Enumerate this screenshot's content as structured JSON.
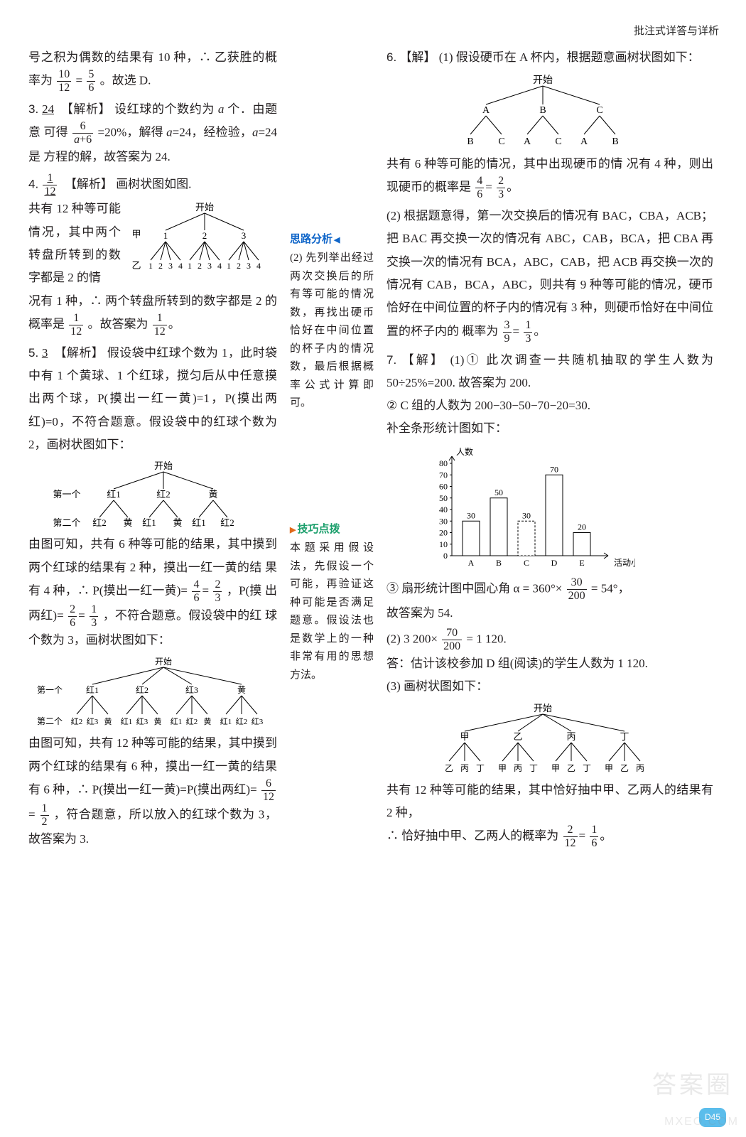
{
  "header": {
    "label": "批注式详答与详析"
  },
  "footer": {
    "page_tag": "D45",
    "watermark1": "答案圈",
    "watermark2": "MXEO.COM"
  },
  "sidenotes": {
    "s1_title": "思路分析",
    "s1_body": "(2) 先列举出经过两次交换后的所有等可能的情况数，再找出硬币恰好在中间位置的杯子内的情况数，最后根据概率公式计算即可。",
    "s2_title": "技巧点拨",
    "s2_body": "本题采用假设法，先假设一个可能，再验证这种可能是否满足题意。假设法也是数学上的一种非常有用的思想方法。"
  },
  "left": {
    "p0a": "号之积为偶数的结果有 10 种，∴ 乙获胜的概",
    "p0b": "率为",
    "p0c": "。故选 D.",
    "q3_num": "3.",
    "q3_ans": "24",
    "q3_tag": "【解析】",
    "q3_a": "设红球的个数约为 ",
    "q3_b": " 个．由题意",
    "q3_c": "可得",
    "q3_d": "=20%，解得 ",
    "q3_e": "=24，经检验，",
    "q3_f": "=24 是",
    "q3_g": "方程的解，故答案为 24.",
    "q4_num": "4.",
    "q4_tag": "【解析】",
    "q4_a": "画树状图如图.",
    "q4_b": "共有 12 种等可能情况，其中两个转盘所转到的数字都是 2 的情",
    "q4_c": "况有 1 种，∴ 两个转盘所转到的数字都是 2 的",
    "q4_d": "概率是",
    "q4_e": "。故答案为",
    "q5_num": "5.",
    "q5_ans": "3",
    "q5_tag": "【解析】",
    "q5_a": "假设袋中红球个数为 1，此时袋中有 1 个黄球、1 个红球，搅匀后从中任意摸出两个球，P(摸出一红一黄)=1，P(摸出两红)=0，不符合题意。假设袋中的红球个数为 2，画树状图如下：",
    "q5_b": "由图可知，共有 6 种等可能的结果，其中摸到两个红球的结果有 2 种，摸出一红一黄的结",
    "q5_c": "果有 4 种，∴ P(摸出一红一黄)=",
    "q5_d": "，P(摸",
    "q5_e": "出两红)=",
    "q5_f": "，不符合题意。假设袋中的红",
    "q5_g": "球个数为 3，画树状图如下：",
    "q5_h": "由图可知，共有 12 种等可能的结果，其中摸到两个红球的结果有 6 种，摸出一红一黄的结果有 6 种，∴ P(摸出一红一黄)=P(摸出两红)=",
    "q5_i": "，符合题意，所以放入的红球个数为 3，",
    "q5_j": "故答案为 3."
  },
  "right": {
    "q6_num": "6.",
    "q6_tag": "【解】",
    "q6_a": "(1) 假设硬币在 A 杯内，根据题意画树状图如下：",
    "q6_b": "共有 6 种等可能的情况，其中出现硬币的情",
    "q6_c": "况有 4 种，则出现硬币的概率是",
    "q6_d": "(2) 根据题意得，第一次交换后的情况有 BAC，CBA，ACB；把 BAC 再交换一次的情况有 ABC，CAB，BCA，把 CBA 再交换一次的情况有 BCA，ABC，CAB，把 ACB 再交换一次的情况有 CAB，BCA，ABC，则共有 9 种等可能的情况，硬币恰好在中间位置的杯子内的情况有 3 种，则硬币恰好在中间位置的杯子内的",
    "q6_e": "概率为",
    "q7_num": "7.",
    "q7_tag": "【解】",
    "q7_a": "(1)① 此次调查一共随机抽取的学生人数为 50÷25%=200. 故答案为 200.",
    "q7_b": "② C 组的人数为 200−30−50−70−20=30.",
    "q7_c": "补全条形统计图如下：",
    "q7_d": "③ 扇形统计图中圆心角 α = 360°×",
    "q7_d2": "= 54°，",
    "q7_e": "故答案为 54.",
    "q7_f": "(2) 3 200×",
    "q7_f2": "= 1 120.",
    "q7_g": "答：估计该校参加 D 组(阅读)的学生人数为 1 120.",
    "q7_h": "(3) 画树状图如下：",
    "q7_i": "共有 12 种等可能的结果，其中恰好抽中甲、乙两人的结果有 2 种，",
    "q7_j": "∴ 恰好抽中甲、乙两人的概率为"
  },
  "tree4": {
    "root": "开始",
    "row1_label": "甲",
    "row2_label": "乙",
    "level1": [
      "1",
      "2",
      "3"
    ],
    "level2": [
      "1",
      "2",
      "3",
      "4",
      "1",
      "2",
      "3",
      "4",
      "1",
      "2",
      "3",
      "4"
    ]
  },
  "tree5a": {
    "root": "开始",
    "r1label": "第一个",
    "r2label": "第二个",
    "level1": [
      "红1",
      "红2",
      "黄"
    ],
    "level2": [
      "红2",
      "黄",
      "红1",
      "黄",
      "红1",
      "红2"
    ]
  },
  "tree5b": {
    "root": "开始",
    "r1label": "第一个",
    "r2label": "第二个",
    "level1": [
      "红1",
      "红2",
      "红3",
      "黄"
    ],
    "level2": [
      "红2",
      "红3",
      "黄",
      "红1",
      "红3",
      "黄",
      "红1",
      "红2",
      "黄",
      "红1",
      "红2",
      "红3"
    ]
  },
  "tree6": {
    "root": "开始",
    "level1": [
      "A",
      "B",
      "C"
    ],
    "level2": [
      "B",
      "C",
      "A",
      "C",
      "A",
      "B"
    ]
  },
  "tree7": {
    "root": "开始",
    "level1": [
      "甲",
      "乙",
      "丙",
      "丁"
    ],
    "level2": [
      "乙",
      "丙",
      "丁",
      "甲",
      "丙",
      "丁",
      "甲",
      "乙",
      "丁",
      "甲",
      "乙",
      "丙"
    ]
  },
  "barchart": {
    "ylabel": "人数",
    "xlabel": "活动小组",
    "yticks": [
      0,
      10,
      20,
      30,
      40,
      50,
      60,
      70,
      80
    ],
    "categories": [
      "A",
      "B",
      "C",
      "D",
      "E"
    ],
    "values": [
      30,
      50,
      30,
      70,
      20
    ],
    "highlight_index": 2,
    "bar_fill": "#ffffff",
    "bar_stroke": "#000000",
    "axis_color": "#000000",
    "font_size": 12,
    "ylim": [
      0,
      80
    ]
  }
}
